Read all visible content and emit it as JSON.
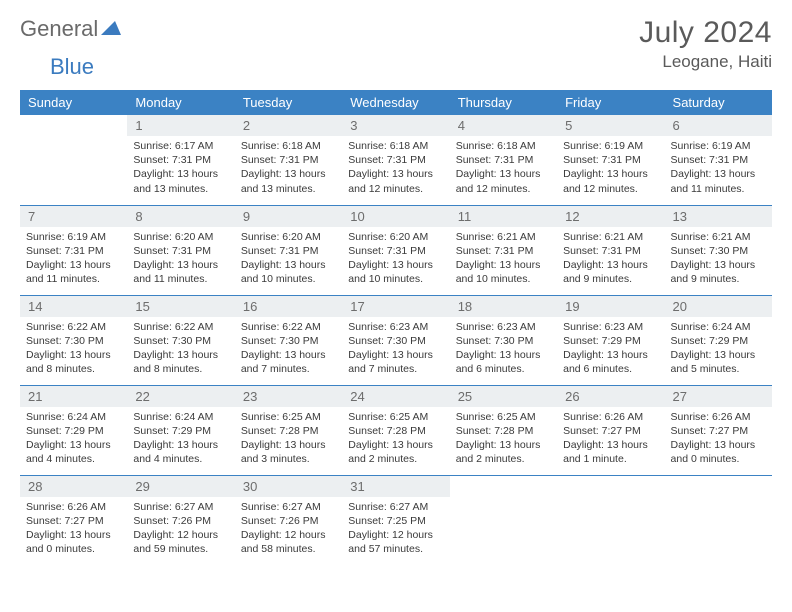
{
  "brand": {
    "main": "General",
    "sub": "Blue"
  },
  "title": "July 2024",
  "location": "Leogane, Haiti",
  "colors": {
    "header_bg": "#3b82c4",
    "header_text": "#ffffff",
    "daynum_bg": "#eceff1",
    "daynum_text": "#6d6d6d",
    "body_text": "#3a3a3a",
    "rule": "#3b82c4",
    "brand_main": "#6a6a6a",
    "brand_sub": "#3b7bbf"
  },
  "day_headers": [
    "Sunday",
    "Monday",
    "Tuesday",
    "Wednesday",
    "Thursday",
    "Friday",
    "Saturday"
  ],
  "weeks": [
    [
      {
        "n": "",
        "sunrise": "",
        "sunset": "",
        "daylight": ""
      },
      {
        "n": "1",
        "sunrise": "Sunrise: 6:17 AM",
        "sunset": "Sunset: 7:31 PM",
        "daylight": "Daylight: 13 hours and 13 minutes."
      },
      {
        "n": "2",
        "sunrise": "Sunrise: 6:18 AM",
        "sunset": "Sunset: 7:31 PM",
        "daylight": "Daylight: 13 hours and 13 minutes."
      },
      {
        "n": "3",
        "sunrise": "Sunrise: 6:18 AM",
        "sunset": "Sunset: 7:31 PM",
        "daylight": "Daylight: 13 hours and 12 minutes."
      },
      {
        "n": "4",
        "sunrise": "Sunrise: 6:18 AM",
        "sunset": "Sunset: 7:31 PM",
        "daylight": "Daylight: 13 hours and 12 minutes."
      },
      {
        "n": "5",
        "sunrise": "Sunrise: 6:19 AM",
        "sunset": "Sunset: 7:31 PM",
        "daylight": "Daylight: 13 hours and 12 minutes."
      },
      {
        "n": "6",
        "sunrise": "Sunrise: 6:19 AM",
        "sunset": "Sunset: 7:31 PM",
        "daylight": "Daylight: 13 hours and 11 minutes."
      }
    ],
    [
      {
        "n": "7",
        "sunrise": "Sunrise: 6:19 AM",
        "sunset": "Sunset: 7:31 PM",
        "daylight": "Daylight: 13 hours and 11 minutes."
      },
      {
        "n": "8",
        "sunrise": "Sunrise: 6:20 AM",
        "sunset": "Sunset: 7:31 PM",
        "daylight": "Daylight: 13 hours and 11 minutes."
      },
      {
        "n": "9",
        "sunrise": "Sunrise: 6:20 AM",
        "sunset": "Sunset: 7:31 PM",
        "daylight": "Daylight: 13 hours and 10 minutes."
      },
      {
        "n": "10",
        "sunrise": "Sunrise: 6:20 AM",
        "sunset": "Sunset: 7:31 PM",
        "daylight": "Daylight: 13 hours and 10 minutes."
      },
      {
        "n": "11",
        "sunrise": "Sunrise: 6:21 AM",
        "sunset": "Sunset: 7:31 PM",
        "daylight": "Daylight: 13 hours and 10 minutes."
      },
      {
        "n": "12",
        "sunrise": "Sunrise: 6:21 AM",
        "sunset": "Sunset: 7:31 PM",
        "daylight": "Daylight: 13 hours and 9 minutes."
      },
      {
        "n": "13",
        "sunrise": "Sunrise: 6:21 AM",
        "sunset": "Sunset: 7:30 PM",
        "daylight": "Daylight: 13 hours and 9 minutes."
      }
    ],
    [
      {
        "n": "14",
        "sunrise": "Sunrise: 6:22 AM",
        "sunset": "Sunset: 7:30 PM",
        "daylight": "Daylight: 13 hours and 8 minutes."
      },
      {
        "n": "15",
        "sunrise": "Sunrise: 6:22 AM",
        "sunset": "Sunset: 7:30 PM",
        "daylight": "Daylight: 13 hours and 8 minutes."
      },
      {
        "n": "16",
        "sunrise": "Sunrise: 6:22 AM",
        "sunset": "Sunset: 7:30 PM",
        "daylight": "Daylight: 13 hours and 7 minutes."
      },
      {
        "n": "17",
        "sunrise": "Sunrise: 6:23 AM",
        "sunset": "Sunset: 7:30 PM",
        "daylight": "Daylight: 13 hours and 7 minutes."
      },
      {
        "n": "18",
        "sunrise": "Sunrise: 6:23 AM",
        "sunset": "Sunset: 7:30 PM",
        "daylight": "Daylight: 13 hours and 6 minutes."
      },
      {
        "n": "19",
        "sunrise": "Sunrise: 6:23 AM",
        "sunset": "Sunset: 7:29 PM",
        "daylight": "Daylight: 13 hours and 6 minutes."
      },
      {
        "n": "20",
        "sunrise": "Sunrise: 6:24 AM",
        "sunset": "Sunset: 7:29 PM",
        "daylight": "Daylight: 13 hours and 5 minutes."
      }
    ],
    [
      {
        "n": "21",
        "sunrise": "Sunrise: 6:24 AM",
        "sunset": "Sunset: 7:29 PM",
        "daylight": "Daylight: 13 hours and 4 minutes."
      },
      {
        "n": "22",
        "sunrise": "Sunrise: 6:24 AM",
        "sunset": "Sunset: 7:29 PM",
        "daylight": "Daylight: 13 hours and 4 minutes."
      },
      {
        "n": "23",
        "sunrise": "Sunrise: 6:25 AM",
        "sunset": "Sunset: 7:28 PM",
        "daylight": "Daylight: 13 hours and 3 minutes."
      },
      {
        "n": "24",
        "sunrise": "Sunrise: 6:25 AM",
        "sunset": "Sunset: 7:28 PM",
        "daylight": "Daylight: 13 hours and 2 minutes."
      },
      {
        "n": "25",
        "sunrise": "Sunrise: 6:25 AM",
        "sunset": "Sunset: 7:28 PM",
        "daylight": "Daylight: 13 hours and 2 minutes."
      },
      {
        "n": "26",
        "sunrise": "Sunrise: 6:26 AM",
        "sunset": "Sunset: 7:27 PM",
        "daylight": "Daylight: 13 hours and 1 minute."
      },
      {
        "n": "27",
        "sunrise": "Sunrise: 6:26 AM",
        "sunset": "Sunset: 7:27 PM",
        "daylight": "Daylight: 13 hours and 0 minutes."
      }
    ],
    [
      {
        "n": "28",
        "sunrise": "Sunrise: 6:26 AM",
        "sunset": "Sunset: 7:27 PM",
        "daylight": "Daylight: 13 hours and 0 minutes."
      },
      {
        "n": "29",
        "sunrise": "Sunrise: 6:27 AM",
        "sunset": "Sunset: 7:26 PM",
        "daylight": "Daylight: 12 hours and 59 minutes."
      },
      {
        "n": "30",
        "sunrise": "Sunrise: 6:27 AM",
        "sunset": "Sunset: 7:26 PM",
        "daylight": "Daylight: 12 hours and 58 minutes."
      },
      {
        "n": "31",
        "sunrise": "Sunrise: 6:27 AM",
        "sunset": "Sunset: 7:25 PM",
        "daylight": "Daylight: 12 hours and 57 minutes."
      },
      {
        "n": "",
        "sunrise": "",
        "sunset": "",
        "daylight": ""
      },
      {
        "n": "",
        "sunrise": "",
        "sunset": "",
        "daylight": ""
      },
      {
        "n": "",
        "sunrise": "",
        "sunset": "",
        "daylight": ""
      }
    ]
  ]
}
